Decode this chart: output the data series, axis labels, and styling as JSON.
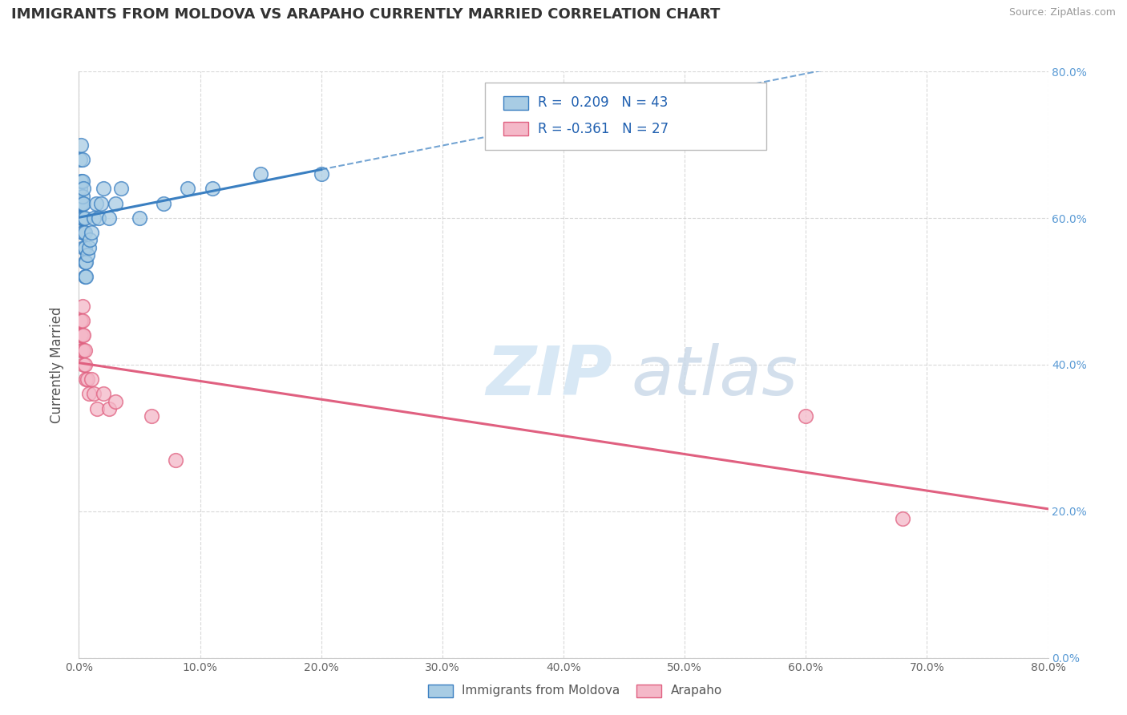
{
  "title": "IMMIGRANTS FROM MOLDOVA VS ARAPAHO CURRENTLY MARRIED CORRELATION CHART",
  "source": "Source: ZipAtlas.com",
  "ylabel": "Currently Married",
  "legend_label1": "Immigrants from Moldova",
  "legend_label2": "Arapaho",
  "R1": 0.209,
  "N1": 43,
  "R2": -0.361,
  "N2": 27,
  "xlim": [
    0.0,
    0.8
  ],
  "ylim": [
    0.0,
    0.8
  ],
  "xticks": [
    0.0,
    0.1,
    0.2,
    0.3,
    0.4,
    0.5,
    0.6,
    0.7,
    0.8
  ],
  "yticks": [
    0.0,
    0.2,
    0.4,
    0.6,
    0.8
  ],
  "color_blue": "#a8cce4",
  "color_pink": "#f4b8c8",
  "color_blue_line": "#3a7fc1",
  "color_pink_line": "#e06080",
  "title_fontsize": 13,
  "blue_x": [
    0.001,
    0.001,
    0.001,
    0.002,
    0.002,
    0.002,
    0.002,
    0.003,
    0.003,
    0.003,
    0.003,
    0.003,
    0.003,
    0.004,
    0.004,
    0.004,
    0.004,
    0.004,
    0.005,
    0.005,
    0.005,
    0.005,
    0.005,
    0.006,
    0.006,
    0.007,
    0.008,
    0.009,
    0.01,
    0.012,
    0.014,
    0.016,
    0.018,
    0.02,
    0.025,
    0.03,
    0.035,
    0.05,
    0.07,
    0.09,
    0.11,
    0.15,
    0.2
  ],
  "blue_y": [
    0.62,
    0.64,
    0.68,
    0.6,
    0.62,
    0.65,
    0.7,
    0.58,
    0.6,
    0.62,
    0.63,
    0.65,
    0.68,
    0.56,
    0.58,
    0.6,
    0.62,
    0.64,
    0.52,
    0.54,
    0.56,
    0.58,
    0.6,
    0.52,
    0.54,
    0.55,
    0.56,
    0.57,
    0.58,
    0.6,
    0.62,
    0.6,
    0.62,
    0.64,
    0.6,
    0.62,
    0.64,
    0.6,
    0.62,
    0.64,
    0.64,
    0.66,
    0.66
  ],
  "pink_x": [
    0.001,
    0.001,
    0.002,
    0.002,
    0.002,
    0.003,
    0.003,
    0.003,
    0.003,
    0.004,
    0.004,
    0.004,
    0.005,
    0.005,
    0.006,
    0.007,
    0.008,
    0.01,
    0.012,
    0.015,
    0.02,
    0.025,
    0.03,
    0.06,
    0.08,
    0.6,
    0.68
  ],
  "pink_y": [
    0.44,
    0.46,
    0.42,
    0.44,
    0.46,
    0.42,
    0.44,
    0.46,
    0.48,
    0.4,
    0.42,
    0.44,
    0.4,
    0.42,
    0.38,
    0.38,
    0.36,
    0.38,
    0.36,
    0.34,
    0.36,
    0.34,
    0.35,
    0.33,
    0.27,
    0.33,
    0.19
  ],
  "background_color": "#ffffff",
  "grid_color": "#d0d0d0"
}
